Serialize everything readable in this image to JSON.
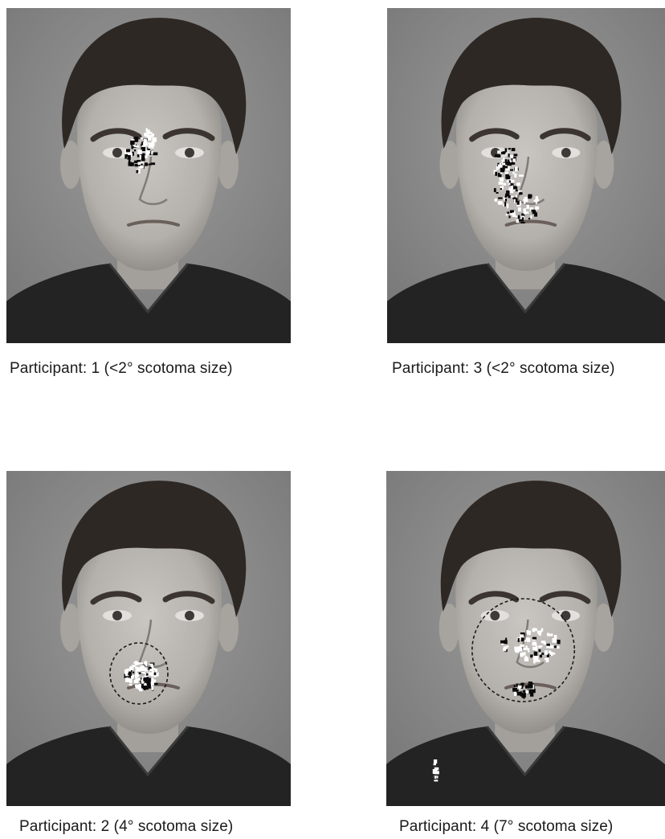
{
  "panels": [
    {
      "caption": "Participant: 1 (<2° scotoma size)"
    },
    {
      "caption": "Participant: 3 (<2° scotoma size)"
    },
    {
      "caption": "Participant: 2 (4° scotoma size)"
    },
    {
      "caption": "Participant: 4 (7° scotoma size)"
    }
  ],
  "colors": {
    "background": "#8a8a8a",
    "hair": "#2e2824",
    "skin": "#b4b0ab",
    "hoodie": "#232323",
    "fixation_dark": "#0a0a0a",
    "fixation_light": "#ffffff"
  }
}
